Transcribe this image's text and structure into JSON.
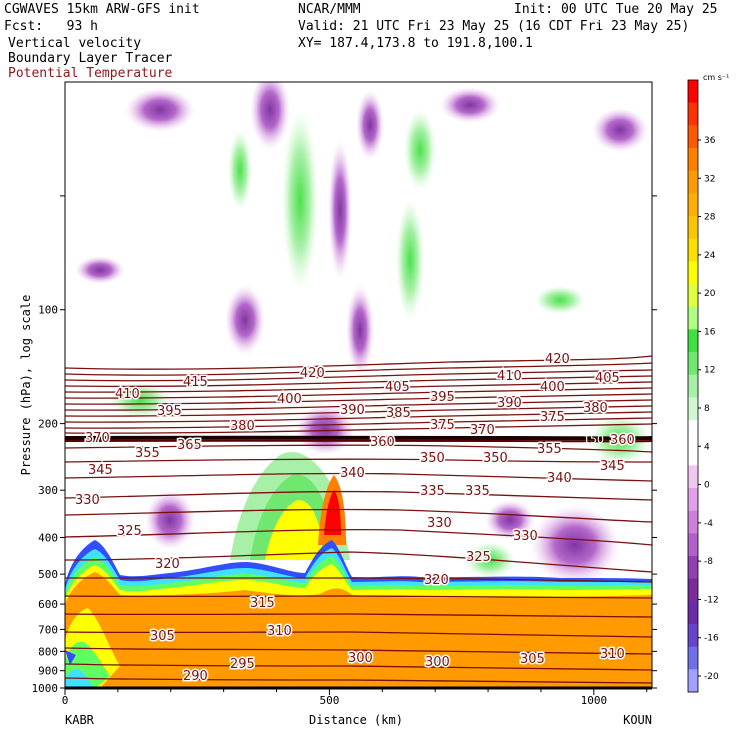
{
  "header": {
    "model": "CGWAVES 15km ARW-GFS init",
    "center": "NCAR/MMM",
    "init": "Init: 00 UTC Tue 20 May 25",
    "fcst": "Fcst:   93 h",
    "valid": "Valid: 21 UTC Fri 23 May 25 (16 CDT Fri 23 May 25)",
    "field1": "Vertical velocity",
    "field2": "Boundary Layer Tracer",
    "field3": "Potential Temperature",
    "xy": "XY= 187.4,173.8 to 191.8,100.1",
    "field3_color": "#8b1a1a"
  },
  "chart_data": {
    "type": "heatmap",
    "title": "",
    "xlabel": "Distance (km)",
    "ylabel": "Pressure (hPa), log scale",
    "x_ticks": [
      0,
      500,
      1000
    ],
    "x_range": [
      0,
      1110
    ],
    "y_ticks": [
      100,
      200,
      300,
      400,
      500,
      600,
      700,
      800,
      900,
      1000
    ],
    "y_range": [
      1000,
      25
    ],
    "y_scale": "log",
    "left_station": "KABR",
    "right_station": "KOUN",
    "colorbar": {
      "units": "cm s⁻¹",
      "labels": [
        36,
        32,
        28,
        24,
        20,
        16,
        12,
        8,
        4,
        0,
        -4,
        -8,
        -12,
        -16,
        -20
      ],
      "colors": [
        "#ff0000",
        "#ff3300",
        "#ff5a00",
        "#ff8000",
        "#ff9a00",
        "#ffb000",
        "#ffc400",
        "#ffe000",
        "#ffff00",
        "#e0ff40",
        "#b0ff80",
        "#40e040",
        "#70e870",
        "#a8f0a8",
        "#d0f8d0",
        "#ffffff",
        "#ffffff",
        "#f2c8f2",
        "#e0a0e8",
        "#cc80d8",
        "#b060c8",
        "#9040b0",
        "#7a2c9c",
        "#6a2ca8",
        "#6644cc",
        "#7070e8",
        "#a0a0ff"
      ]
    },
    "theta_contours": {
      "color": "#7a1010",
      "labels": [
        290,
        295,
        300,
        305,
        310,
        315,
        320,
        325,
        330,
        335,
        340,
        345,
        350,
        355,
        360,
        365,
        370,
        375,
        380,
        385,
        390,
        395,
        400,
        405,
        410,
        415,
        420
      ]
    },
    "tropopause_label": "150"
  }
}
